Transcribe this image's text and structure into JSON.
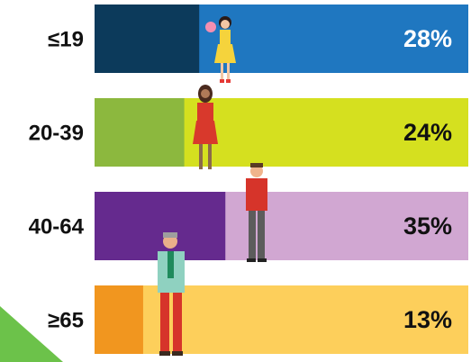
{
  "chart_data": {
    "type": "bar",
    "categories": [
      "≤19",
      "20-39",
      "40-64",
      "≥65"
    ],
    "values": [
      28,
      24,
      35,
      13
    ],
    "value_labels": [
      "28%",
      "24%",
      "35%",
      "13%"
    ],
    "xlim": [
      0,
      100
    ],
    "colors": [
      "#0c3a5b",
      "#8cb83e",
      "#652a8e",
      "#f1961f"
    ],
    "track_colors": [
      "#1f77c0",
      "#d5e01f",
      "#d1a7d2",
      "#fdcf5b"
    ],
    "label_colors": [
      "#ffffff",
      "#111111",
      "#111111",
      "#111111"
    ]
  }
}
